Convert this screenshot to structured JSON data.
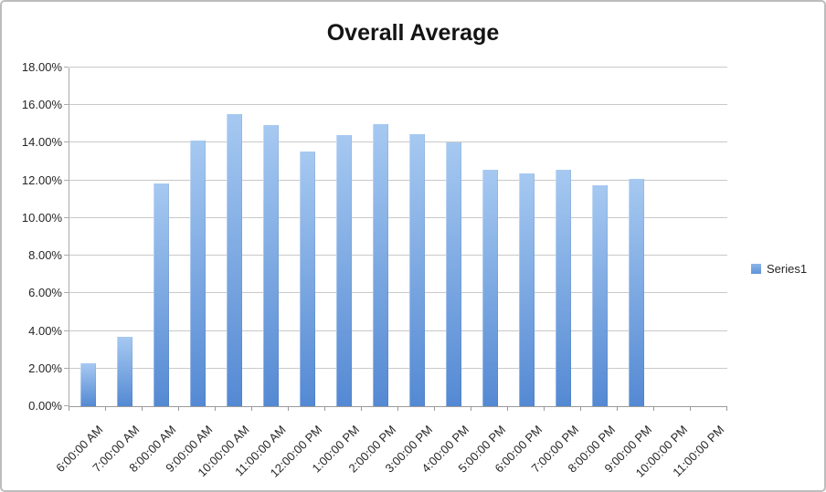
{
  "chart_title": "Overall Average",
  "legend": {
    "series_label": "Series1"
  },
  "colors": {
    "bar_gradient_top": "#a6c9f1",
    "bar_gradient_bottom": "#5489d3",
    "legend_marker_top": "#8cb4e8",
    "legend_marker_bottom": "#5e93d8",
    "gridline": "#c9c9c9",
    "axis": "#9a9a9a",
    "label_text": "#262626",
    "title_text": "#141414",
    "border": "#bdbdbd",
    "background": "#ffffff"
  },
  "chart_data": {
    "type": "bar",
    "title": "Overall Average",
    "series_name": "Series1",
    "legend_position": "right",
    "grid": true,
    "xlabel": "",
    "ylabel": "",
    "ylim": [
      0,
      18
    ],
    "ytick_step": 2,
    "ytick_labels": [
      "0.00%",
      "2.00%",
      "4.00%",
      "6.00%",
      "8.00%",
      "10.00%",
      "12.00%",
      "14.00%",
      "16.00%",
      "18.00%"
    ],
    "categories": [
      "6:00:00 AM",
      "7:00:00 AM",
      "8:00:00 AM",
      "9:00:00 AM",
      "10:00:00 AM",
      "11:00:00 AM",
      "12:00:00 PM",
      "1:00:00 PM",
      "2:00:00 PM",
      "3:00:00 PM",
      "4:00:00 PM",
      "5:00:00 PM",
      "6:00:00 PM",
      "7:00:00 PM",
      "8:00:00 PM",
      "9:00:00 PM",
      "10:00:00 PM",
      "11:00:00 PM"
    ],
    "values": [
      2.3,
      3.7,
      11.85,
      14.1,
      15.55,
      14.95,
      13.55,
      14.4,
      15.0,
      14.45,
      14.0,
      12.55,
      12.35,
      12.55,
      11.75,
      12.1,
      0,
      0
    ],
    "values_unit": "percent"
  }
}
